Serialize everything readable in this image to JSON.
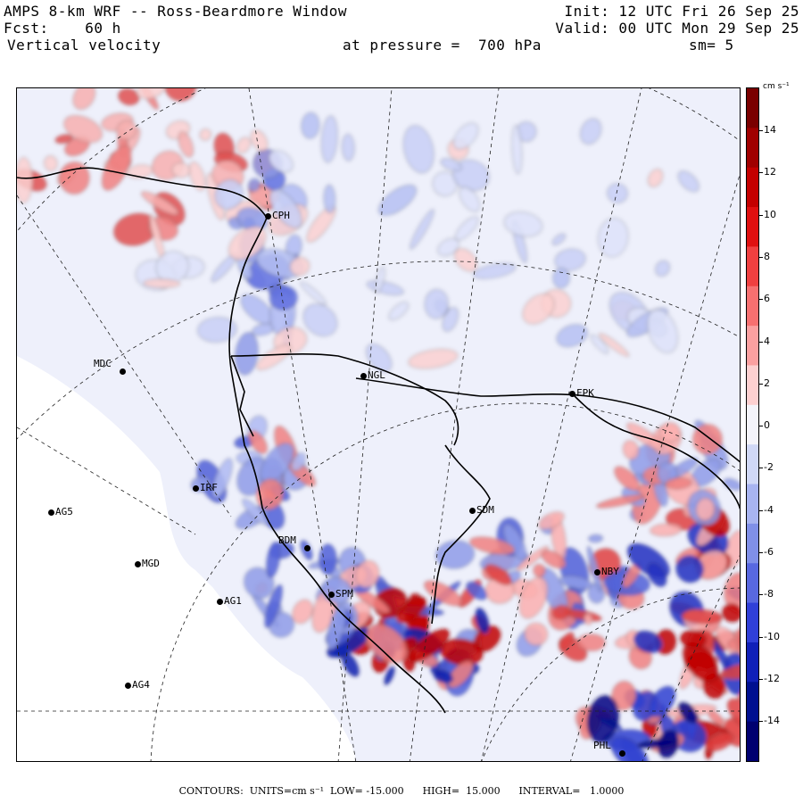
{
  "header": {
    "line1_left": "AMPS 8-km WRF -- Ross-Beardmore Window",
    "line2_left": "Fcst:    60 h",
    "line3_left": "Vertical velocity",
    "line1_right": "Init: 12 UTC Fri 26 Sep 25",
    "line2_right": "Valid: 00 UTC Mon 29 Sep 25",
    "pressure": "at pressure =  700 hPa",
    "smoothing": "sm= 5"
  },
  "colorbar": {
    "unit": "cm s⁻¹",
    "ticks": [
      "14",
      "12",
      "10",
      "8",
      "6",
      "4",
      "2",
      "0",
      "-2",
      "-4",
      "-6",
      "-8",
      "-10",
      "-12",
      "-14"
    ],
    "colors": [
      "#7a0000",
      "#a00000",
      "#c40000",
      "#e01010",
      "#f04040",
      "#f77070",
      "#fba0a0",
      "#fdd0d0",
      "#f4f4fa",
      "#d0d8f6",
      "#a8b4f0",
      "#8090e8",
      "#5868e0",
      "#3040d8",
      "#1020b8",
      "#001090",
      "#000070"
    ]
  },
  "stations": [
    {
      "name": "CPH"
    },
    {
      "name": "MDC"
    },
    {
      "name": "NGL"
    },
    {
      "name": "FPK"
    },
    {
      "name": "SDM"
    },
    {
      "name": "AG5"
    },
    {
      "name": "MGD"
    },
    {
      "name": "AG1"
    },
    {
      "name": "AG4"
    },
    {
      "name": "BDM"
    },
    {
      "name": "NBY"
    },
    {
      "name": "PHL"
    },
    {
      "name": "IRF"
    },
    {
      "name": "SPM"
    }
  ],
  "footer": {
    "text": "CONTOURS:  UNITS=cm s⁻¹  LOW= -15.000      HIGH=  15.000      INTERVAL=   1.0000"
  }
}
